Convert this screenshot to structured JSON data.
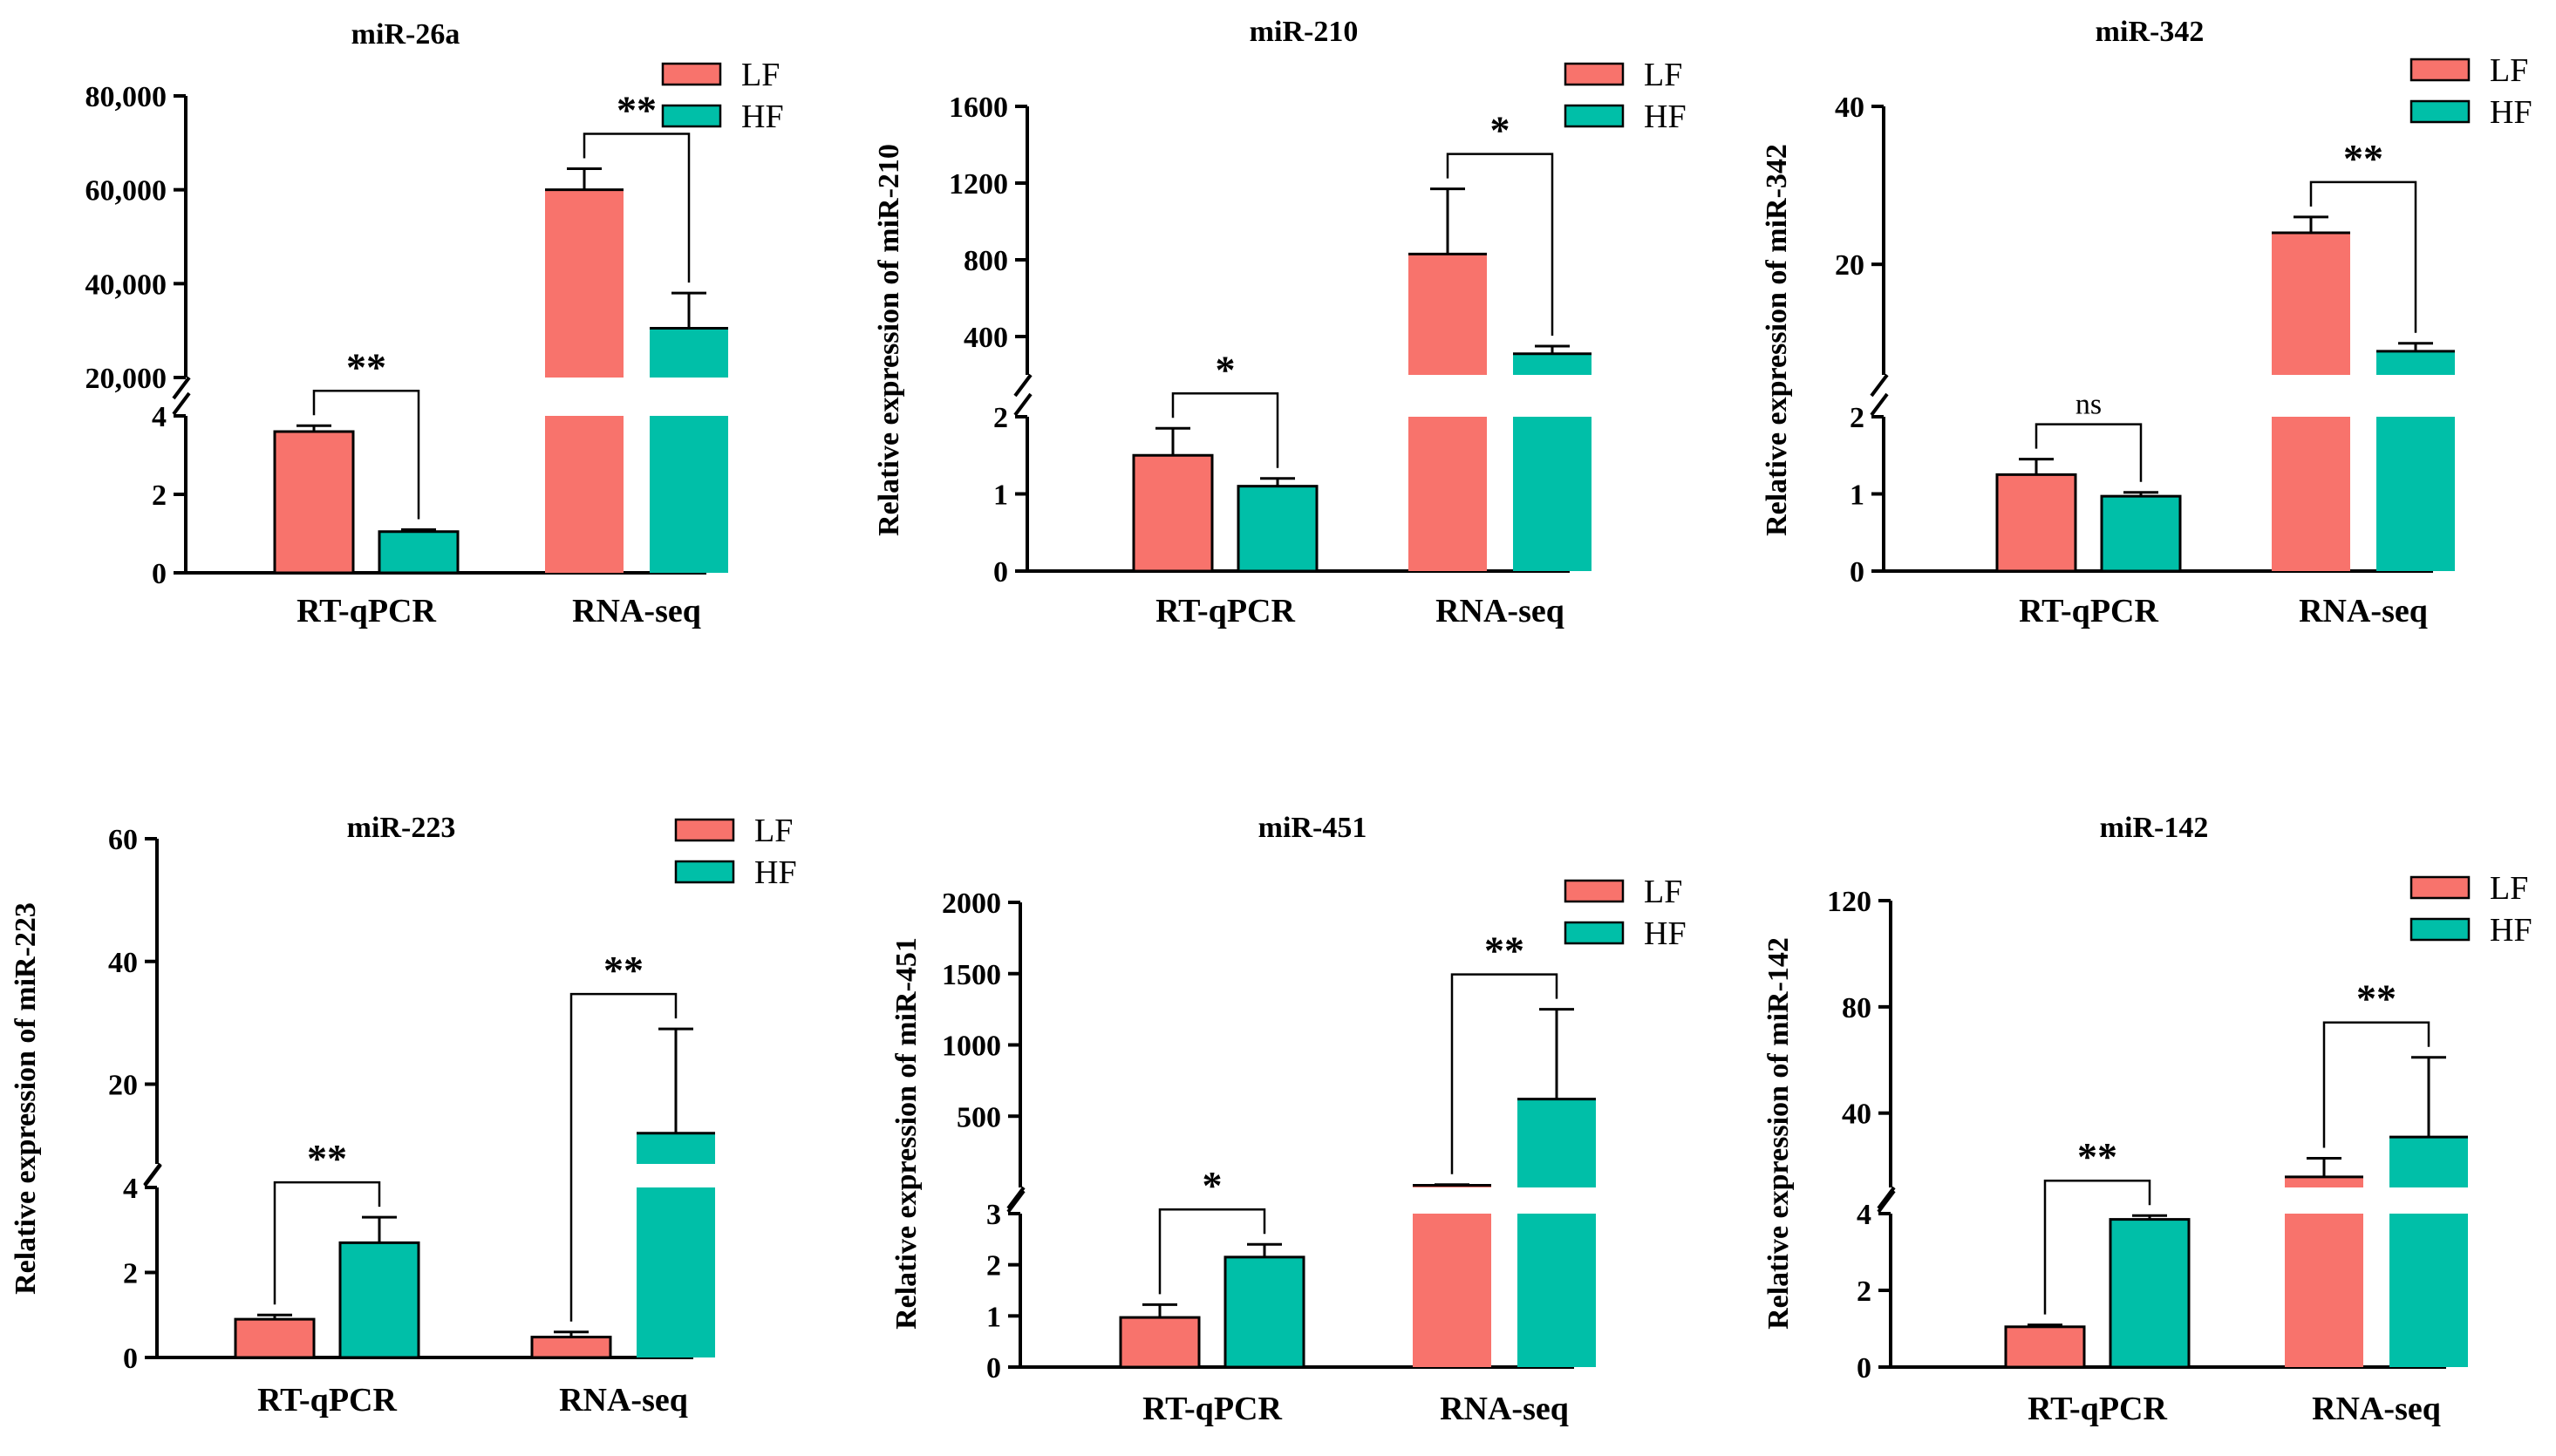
{
  "colors": {
    "LF": "#f8736c",
    "HF": "#00bfa8",
    "axis": "#000000"
  },
  "chart_data": [
    {
      "type": "bar",
      "title": "miR-26a",
      "ylabel": "",
      "categories": [
        "RT-qPCR",
        "RNA-seq"
      ],
      "series": [
        {
          "name": "LF",
          "values": [
            3.6,
            60000
          ],
          "errors": [
            0.15,
            4500
          ]
        },
        {
          "name": "HF",
          "values": [
            1.05,
            30500
          ],
          "errors": [
            0.05,
            7500
          ]
        }
      ],
      "significance": [
        "**",
        "**"
      ],
      "ylim": [
        0,
        80000
      ],
      "axis_break": {
        "lower": [
          0,
          4
        ],
        "upper": [
          20000,
          80000
        ]
      },
      "lower_ticks": [
        0,
        2,
        4
      ],
      "upper_ticks": [
        20000,
        40000,
        60000,
        80000
      ],
      "tick_labels": {
        "20000": "20,000",
        "40000": "40,000",
        "60000": "60,000",
        "80000": "80,000"
      }
    },
    {
      "type": "bar",
      "title": "miR-210",
      "ylabel": "Relative expression of miR-210",
      "categories": [
        "RT-qPCR",
        "RNA-seq"
      ],
      "series": [
        {
          "name": "LF",
          "values": [
            1.5,
            830
          ],
          "errors": [
            0.35,
            340
          ]
        },
        {
          "name": "HF",
          "values": [
            1.1,
            310
          ],
          "errors": [
            0.1,
            40
          ]
        }
      ],
      "significance": [
        "*",
        "*"
      ],
      "ylim": [
        0,
        1600
      ],
      "axis_break": {
        "lower": [
          0,
          2
        ],
        "upper": [
          200,
          1600
        ]
      },
      "lower_ticks": [
        0,
        1,
        2
      ],
      "upper_ticks": [
        400,
        800,
        1200,
        1600
      ],
      "tick_labels": {}
    },
    {
      "type": "bar",
      "title": "miR-342",
      "ylabel": "Relative expression of miR-342",
      "categories": [
        "RT-qPCR",
        "RNA-seq"
      ],
      "series": [
        {
          "name": "LF",
          "values": [
            1.25,
            24
          ],
          "errors": [
            0.2,
            2
          ]
        },
        {
          "name": "HF",
          "values": [
            0.97,
            9
          ],
          "errors": [
            0.05,
            1
          ]
        }
      ],
      "significance": [
        "ns",
        "**"
      ],
      "ylim": [
        0,
        40
      ],
      "axis_break": {
        "lower": [
          0,
          2
        ],
        "upper": [
          6,
          40
        ]
      },
      "lower_ticks": [
        0,
        1,
        2
      ],
      "upper_ticks": [
        20,
        40
      ],
      "tick_labels": {}
    },
    {
      "type": "bar",
      "title": "miR-223",
      "ylabel": "Relative expression of miR-223",
      "categories": [
        "RT-qPCR",
        "RNA-seq"
      ],
      "series": [
        {
          "name": "LF",
          "values": [
            0.9,
            0.48
          ],
          "errors": [
            0.1,
            0.12
          ]
        },
        {
          "name": "HF",
          "values": [
            2.7,
            12
          ],
          "errors": [
            0.6,
            17
          ]
        }
      ],
      "significance": [
        "**",
        "**"
      ],
      "ylim": [
        0,
        60
      ],
      "axis_break": {
        "lower": [
          0,
          4
        ],
        "upper": [
          7,
          60
        ]
      },
      "lower_ticks": [
        0,
        2,
        4
      ],
      "upper_ticks": [
        20,
        40,
        60
      ],
      "tick_labels": {}
    },
    {
      "type": "bar",
      "title": "miR-451",
      "ylabel": "Relative expression of miR-451",
      "categories": [
        "RT-qPCR",
        "RNA-seq"
      ],
      "series": [
        {
          "name": "LF",
          "values": [
            0.97,
            15
          ],
          "errors": [
            0.25,
            5
          ]
        },
        {
          "name": "HF",
          "values": [
            2.15,
            620
          ],
          "errors": [
            0.25,
            630
          ]
        }
      ],
      "significance": [
        "*",
        "**"
      ],
      "ylim": [
        0,
        2000
      ],
      "axis_break": {
        "lower": [
          0,
          3
        ],
        "upper": [
          0,
          2000
        ]
      },
      "lower_ticks": [
        0,
        1,
        2,
        3
      ],
      "upper_ticks": [
        500,
        1000,
        1500,
        2000
      ],
      "tick_labels": {}
    },
    {
      "type": "bar",
      "title": "miR-142",
      "ylabel": "Relative expression of miR-142",
      "categories": [
        "RT-qPCR",
        "RNA-seq"
      ],
      "series": [
        {
          "name": "LF",
          "values": [
            1.05,
            16
          ],
          "errors": [
            0.05,
            7
          ]
        },
        {
          "name": "HF",
          "values": [
            3.85,
            31
          ],
          "errors": [
            0.1,
            30
          ]
        }
      ],
      "significance": [
        "**",
        "**"
      ],
      "ylim": [
        0,
        120
      ],
      "axis_break": {
        "lower": [
          0,
          4
        ],
        "upper": [
          12,
          120
        ]
      },
      "lower_ticks": [
        0,
        2,
        4
      ],
      "upper_ticks": [
        40,
        80,
        120
      ],
      "tick_labels": {}
    }
  ]
}
